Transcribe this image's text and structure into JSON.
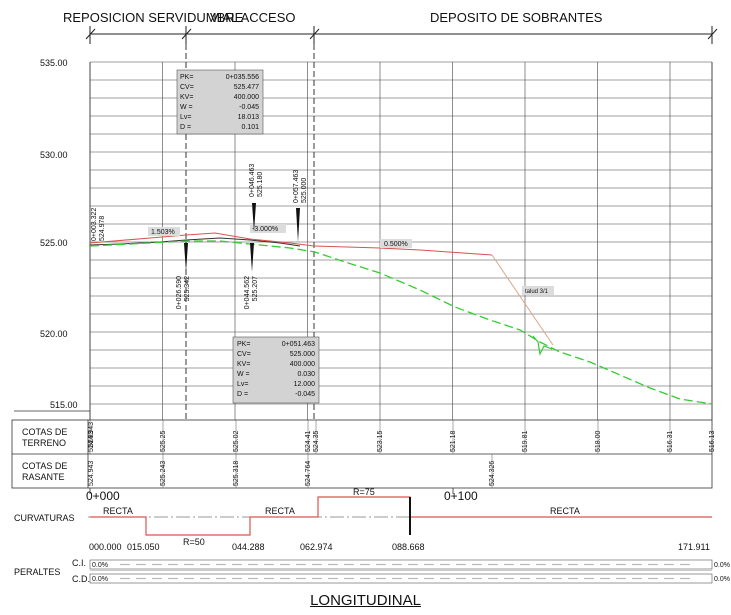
{
  "headers": {
    "reposicion": "REPOSICION SERVIDUMBRE",
    "vial": "VIAL ACCESO",
    "deposito": "DEPOSITO DE SOBRANTES"
  },
  "y_axis": {
    "ticks": [
      "535.00",
      "530.00",
      "525.00",
      "520.00",
      "515.00"
    ]
  },
  "vertical_curves": [
    {
      "rows": [
        {
          "k": "PK=",
          "v": "0+035.556"
        },
        {
          "k": "CV=",
          "v": "525.477"
        },
        {
          "k": "KV=",
          "v": "400.000"
        },
        {
          "k": "W =",
          "v": "-0.045"
        },
        {
          "k": "Lv=",
          "v": "18.013"
        },
        {
          "k": "D =",
          "v": "0.101"
        }
      ]
    },
    {
      "rows": [
        {
          "k": "PK=",
          "v": "0+051.463"
        },
        {
          "k": "CV=",
          "v": "525.000"
        },
        {
          "k": "KV=",
          "v": "400.000"
        },
        {
          "k": "W =",
          "v": "0.030"
        },
        {
          "k": "Lv=",
          "v": "12.000"
        },
        {
          "k": "D =",
          "v": "-0.045"
        }
      ]
    }
  ],
  "grades": {
    "g1": "1.503%",
    "g2": "-3.000%",
    "g3": "0.500%",
    "talud": "talud 3/1"
  },
  "point_labels": {
    "p0_pk": "0+003.322",
    "p0_z": "524.978",
    "p1_pk": "0+026.590",
    "p1_z": "525.342",
    "p2_pk": "0+046.463",
    "p2_z": "525.180",
    "p3_pk": "0+044.562",
    "p3_z": "525.207",
    "p4_pk": "0+057.463",
    "p4_z": "525.000"
  },
  "guitar": {
    "terreno_l1": "COTAS DE",
    "terreno_l2": "TERRENO",
    "rasante_l1": "COTAS DE",
    "rasante_l2": "RASANTE",
    "terreno_vals": [
      "524.943",
      "524.93",
      "525.25",
      "525.02",
      "524.41",
      "524.35",
      "523.15",
      "521.18",
      "519.81",
      "518.00",
      "516.31",
      "516.13"
    ],
    "rasante_vals": [
      "524.943",
      "525.243",
      "525.318",
      "524.764",
      "524.326"
    ]
  },
  "chainage": {
    "start": "0+000",
    "mid": "0+100"
  },
  "curvaturas": {
    "label": "CURVATURAS",
    "recta1": "RECTA",
    "r50": "R=50",
    "recta2": "RECTA",
    "r75": "R=75",
    "recta3": "RECTA",
    "stations": [
      "000.000",
      "015.050",
      "044.288",
      "062.974",
      "088.668",
      "171.911"
    ]
  },
  "peraltes": {
    "label": "PERALTES",
    "ci": "C.I.",
    "cd": "C.D.",
    "ci_left": "0.0%",
    "ci_right": "0.0%",
    "cd_left": "0.0%",
    "cd_right": "0.0%"
  },
  "title": "LONGITUDINAL",
  "colors": {
    "rasante": "#d9534f",
    "terreno_green": "#33cc33",
    "terreno_dark": "#333333",
    "talud": "#d9a58a",
    "box_fill": "#d3d3d3"
  }
}
